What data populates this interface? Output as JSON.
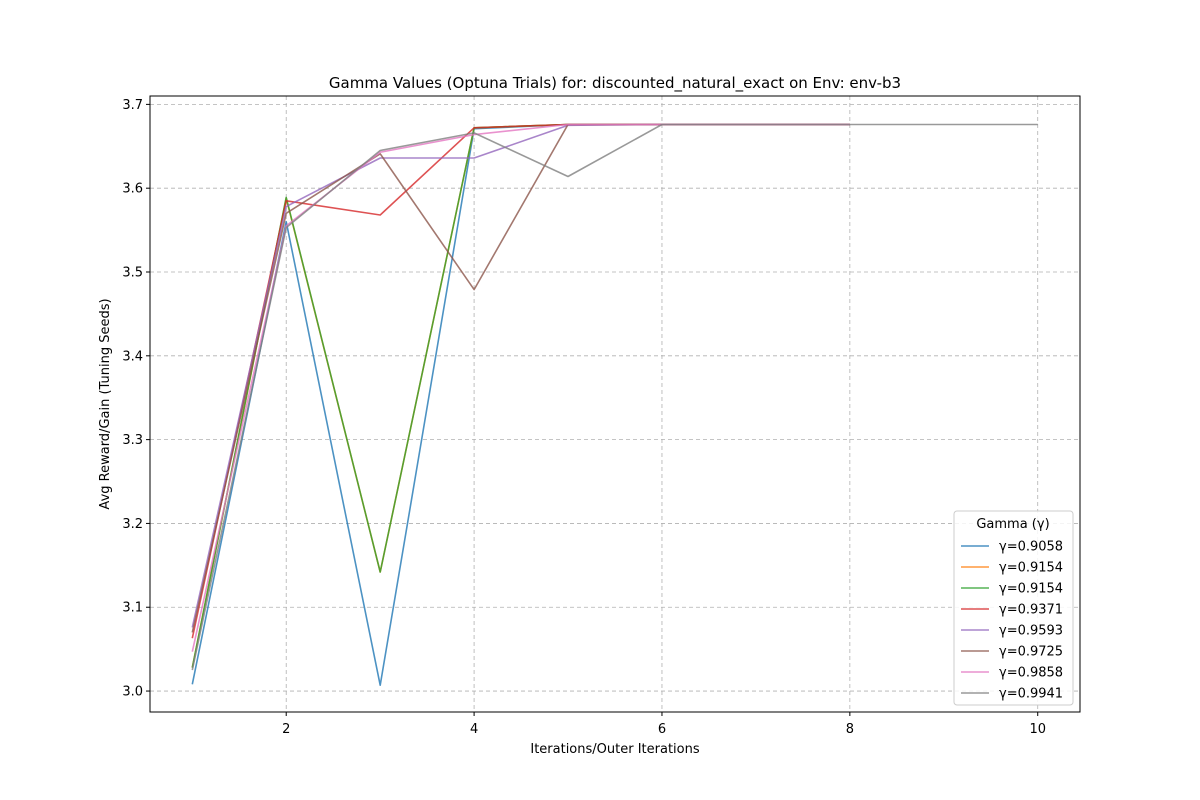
{
  "chart_data": {
    "type": "line",
    "title": "Gamma Values (Optuna Trials) for: discounted_natural_exact on Env: env-b3",
    "xlabel": "Iterations/Outer Iterations",
    "ylabel": "Avg Reward/Gain (Tuning Seeds)",
    "xlim": [
      0.55,
      10.45
    ],
    "ylim": [
      2.975,
      3.71
    ],
    "xticks": [
      2,
      4,
      6,
      8,
      10
    ],
    "yticks": [
      3.0,
      3.1,
      3.2,
      3.3,
      3.4,
      3.5,
      3.6,
      3.7
    ],
    "grid": true,
    "legend": {
      "title": "Gamma (γ)",
      "position": "lower-right"
    },
    "series": [
      {
        "name": "γ=0.9058",
        "color": "#1f77b4",
        "x": [
          1,
          2,
          3,
          4,
          5,
          6,
          7,
          8
        ],
        "y": [
          3.008,
          3.56,
          3.007,
          3.671,
          3.676,
          3.676,
          3.676,
          3.676
        ]
      },
      {
        "name": "γ=0.9154",
        "color": "#ff7f0e",
        "x": [
          1,
          2,
          3,
          4,
          5,
          6,
          7,
          8
        ],
        "y": [
          3.028,
          3.588,
          3.142,
          3.672,
          3.676,
          3.676,
          3.676,
          3.676
        ]
      },
      {
        "name": "γ=0.9154",
        "color": "#2ca02c",
        "x": [
          1,
          2,
          3,
          4,
          5,
          6,
          7,
          8
        ],
        "y": [
          3.028,
          3.589,
          3.142,
          3.672,
          3.676,
          3.676,
          3.676,
          3.676
        ]
      },
      {
        "name": "γ=0.9371",
        "color": "#d62728",
        "x": [
          1,
          2,
          3,
          4,
          5,
          6,
          7,
          8
        ],
        "y": [
          3.063,
          3.585,
          3.568,
          3.672,
          3.676,
          3.676,
          3.676,
          3.676
        ]
      },
      {
        "name": "γ=0.9593",
        "color": "#9467bd",
        "x": [
          1,
          2,
          3,
          4,
          5,
          6,
          7,
          8
        ],
        "y": [
          3.076,
          3.578,
          3.636,
          3.636,
          3.675,
          3.676,
          3.676,
          3.676
        ]
      },
      {
        "name": "γ=0.9725",
        "color": "#8c564b",
        "x": [
          1,
          2,
          3,
          4,
          5,
          6,
          7,
          8
        ],
        "y": [
          3.07,
          3.57,
          3.641,
          3.479,
          3.676,
          3.676,
          3.676,
          3.676
        ]
      },
      {
        "name": "γ=0.9858",
        "color": "#e377c2",
        "x": [
          1,
          2,
          3,
          4,
          5,
          6,
          7,
          8
        ],
        "y": [
          3.047,
          3.555,
          3.643,
          3.664,
          3.676,
          3.676,
          3.676,
          3.676
        ]
      },
      {
        "name": "γ=0.9941",
        "color": "#7f7f7f",
        "x": [
          1,
          2,
          3,
          4,
          5,
          6,
          7,
          8,
          9,
          10
        ],
        "y": [
          3.025,
          3.553,
          3.645,
          3.666,
          3.614,
          3.676,
          3.676,
          3.676,
          3.676,
          3.676
        ]
      }
    ]
  }
}
